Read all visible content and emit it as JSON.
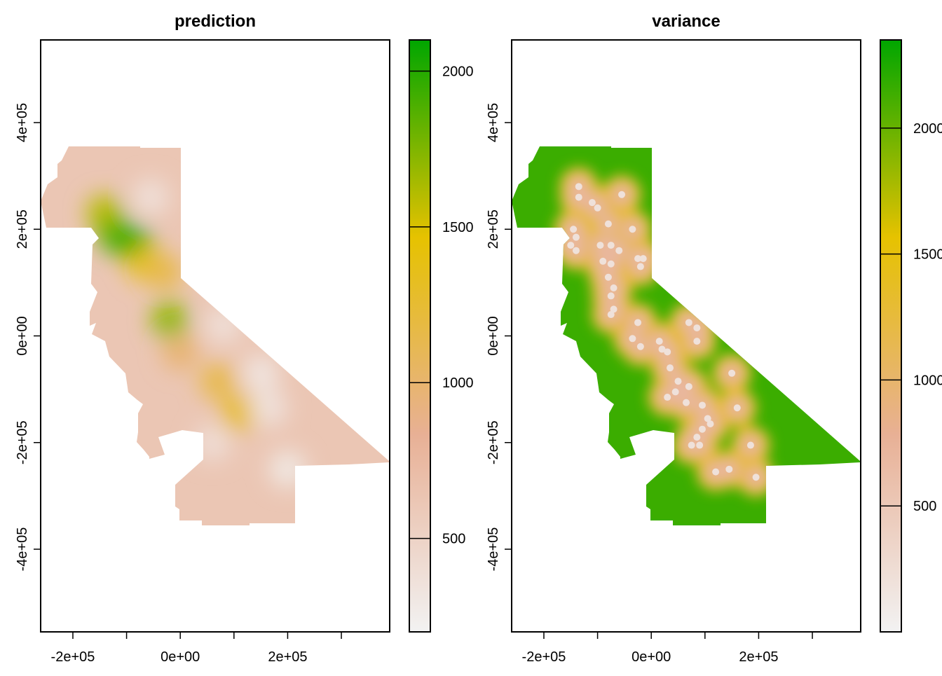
{
  "chart_data": [
    {
      "type": "heatmap",
      "title": "prediction",
      "xlim": [
        -260000,
        390000
      ],
      "ylim": [
        -555000,
        555000
      ],
      "x_ticks": [
        -200000,
        -100000,
        0,
        100000,
        200000,
        300000
      ],
      "x_tick_labels": [
        {
          "value": -200000,
          "label": "-2e+05"
        },
        {
          "value": 0,
          "label": "0e+00"
        },
        {
          "value": 200000,
          "label": "2e+05"
        }
      ],
      "y_ticks": [
        -400000,
        -200000,
        0,
        200000,
        400000
      ],
      "y_tick_labels": [
        {
          "value": -400000,
          "label": "-4e+05"
        },
        {
          "value": -200000,
          "label": "-2e+05"
        },
        {
          "value": 0,
          "label": "0e+00"
        },
        {
          "value": 200000,
          "label": "2e+05"
        },
        {
          "value": 400000,
          "label": "4e+05"
        }
      ],
      "legend": {
        "range": [
          200,
          2100
        ],
        "ticks": [
          500,
          1000,
          1500,
          2000
        ],
        "tick_labels": [
          "500",
          "1000",
          "1500",
          "2000"
        ],
        "colors": [
          "#f2f2f2",
          "#e8b095",
          "#e6c200",
          "#00a600"
        ]
      },
      "base_value": 620,
      "features": [
        {
          "x": -140000,
          "y": 230000,
          "value": 1600
        },
        {
          "x": -120000,
          "y": 190000,
          "value": 1850
        },
        {
          "x": -85000,
          "y": 170000,
          "value": 2000
        },
        {
          "x": -65000,
          "y": 135000,
          "value": 1400
        },
        {
          "x": -30000,
          "y": 120000,
          "value": 1150
        },
        {
          "x": -20000,
          "y": 30000,
          "value": 1700
        },
        {
          "x": 0,
          "y": -30000,
          "value": 980
        },
        {
          "x": 70000,
          "y": -85000,
          "value": 1150
        },
        {
          "x": 110000,
          "y": -145000,
          "value": 1300
        },
        {
          "x": -55000,
          "y": 260000,
          "value": 380
        },
        {
          "x": 80000,
          "y": 20000,
          "value": 380
        },
        {
          "x": 150000,
          "y": -70000,
          "value": 330
        },
        {
          "x": 165000,
          "y": -135000,
          "value": 360
        },
        {
          "x": 200000,
          "y": -250000,
          "value": 300
        },
        {
          "x": 60000,
          "y": -200000,
          "value": 400
        }
      ]
    },
    {
      "type": "heatmap",
      "title": "variance",
      "xlim": [
        -260000,
        390000
      ],
      "ylim": [
        -555000,
        555000
      ],
      "x_ticks": [
        -200000,
        -100000,
        0,
        100000,
        200000,
        300000
      ],
      "x_tick_labels": [
        {
          "value": -200000,
          "label": "-2e+05"
        },
        {
          "value": 0,
          "label": "0e+00"
        },
        {
          "value": 200000,
          "label": "2e+05"
        }
      ],
      "y_ticks": [
        -400000,
        -200000,
        0,
        200000,
        400000
      ],
      "y_tick_labels": [
        {
          "value": -400000,
          "label": "-4e+05"
        },
        {
          "value": -200000,
          "label": "-2e+05"
        },
        {
          "value": 0,
          "label": "0e+00"
        },
        {
          "value": 200000,
          "label": "2e+05"
        },
        {
          "value": 400000,
          "label": "4e+05"
        }
      ],
      "legend": {
        "range": [
          0,
          2350
        ],
        "ticks": [
          500,
          1000,
          1500,
          2000
        ],
        "tick_labels": [
          "500",
          "1000",
          "1500",
          "2000"
        ],
        "colors": [
          "#f2f2f2",
          "#e8b095",
          "#e6c200",
          "#00a600"
        ]
      },
      "base_value": 2150,
      "observation_locations": [
        [
          -135000,
          280000
        ],
        [
          -135000,
          260000
        ],
        [
          -110000,
          250000
        ],
        [
          -100000,
          240000
        ],
        [
          -55000,
          265000
        ],
        [
          -80000,
          210000
        ],
        [
          -35000,
          200000
        ],
        [
          -145000,
          200000
        ],
        [
          -140000,
          185000
        ],
        [
          -150000,
          170000
        ],
        [
          -140000,
          160000
        ],
        [
          -95000,
          170000
        ],
        [
          -75000,
          170000
        ],
        [
          -60000,
          160000
        ],
        [
          -90000,
          140000
        ],
        [
          -75000,
          135000
        ],
        [
          -25000,
          145000
        ],
        [
          -15000,
          145000
        ],
        [
          -20000,
          130000
        ],
        [
          -80000,
          110000
        ],
        [
          -70000,
          90000
        ],
        [
          -75000,
          75000
        ],
        [
          -70000,
          50000
        ],
        [
          -75000,
          40000
        ],
        [
          -25000,
          25000
        ],
        [
          -35000,
          -5000
        ],
        [
          -20000,
          -20000
        ],
        [
          15000,
          -10000
        ],
        [
          20000,
          -25000
        ],
        [
          30000,
          -30000
        ],
        [
          35000,
          -60000
        ],
        [
          70000,
          25000
        ],
        [
          85000,
          15000
        ],
        [
          85000,
          -10000
        ],
        [
          50000,
          -85000
        ],
        [
          70000,
          -95000
        ],
        [
          45000,
          -105000
        ],
        [
          30000,
          -115000
        ],
        [
          150000,
          -70000
        ],
        [
          65000,
          -125000
        ],
        [
          95000,
          -130000
        ],
        [
          105000,
          -155000
        ],
        [
          110000,
          -165000
        ],
        [
          95000,
          -175000
        ],
        [
          85000,
          -190000
        ],
        [
          75000,
          -205000
        ],
        [
          90000,
          -205000
        ],
        [
          160000,
          -135000
        ],
        [
          185000,
          -205000
        ],
        [
          120000,
          -255000
        ],
        [
          145000,
          -250000
        ],
        [
          195000,
          -265000
        ]
      ]
    }
  ]
}
